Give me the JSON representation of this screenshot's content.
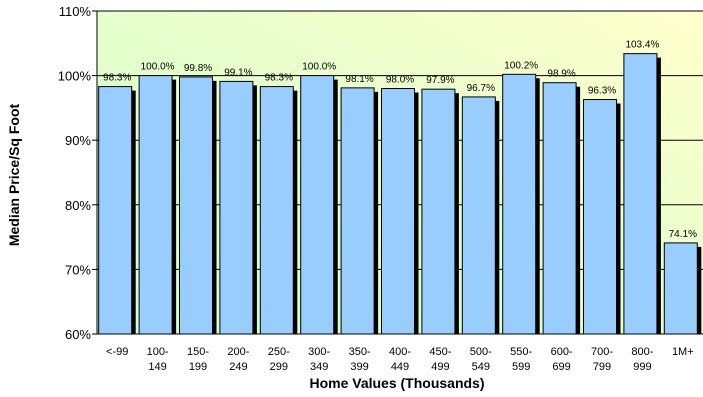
{
  "chart_data": {
    "type": "bar",
    "title": "",
    "xlabel": "Home Values (Thousands)",
    "ylabel": "Median Price/Sq Foot",
    "ylim": [
      60,
      110
    ],
    "yticks": [
      60,
      70,
      80,
      90,
      100,
      110
    ],
    "ytick_labels": [
      "60%",
      "70%",
      "80%",
      "90%",
      "100%",
      "110%"
    ],
    "grid": "horizontal",
    "legend": "none",
    "categories": [
      [
        "<-99"
      ],
      [
        "100-",
        "149"
      ],
      [
        "150-",
        "199"
      ],
      [
        "200-",
        "249"
      ],
      [
        "250-",
        "299"
      ],
      [
        "300-",
        "349"
      ],
      [
        "350-",
        "399"
      ],
      [
        "400-",
        "449"
      ],
      [
        "450-",
        "499"
      ],
      [
        "500-",
        "549"
      ],
      [
        "550-",
        "599"
      ],
      [
        "600-",
        "699"
      ],
      [
        "700-",
        "799"
      ],
      [
        "800-",
        "999"
      ],
      [
        "1M+"
      ]
    ],
    "values": [
      98.3,
      100.0,
      99.8,
      99.1,
      98.3,
      100.0,
      98.1,
      98.0,
      97.9,
      96.7,
      100.2,
      98.9,
      96.3,
      103.4,
      74.1
    ],
    "data_labels": [
      "98.3%",
      "100.0%",
      "99.8%",
      "99.1%",
      "98.3%",
      "100.0%",
      "98.1%",
      "98.0%",
      "97.9%",
      "96.7%",
      "100.2%",
      "98.9%",
      "96.3%",
      "103.4%",
      "74.1%"
    ],
    "colors": {
      "bar": "#99ccff",
      "bar_edge": "#000000",
      "bar_shadow": "#000000",
      "plot_bg_left": "#ccffcc",
      "plot_bg_right": "#ffffcc",
      "gridline": "#000000"
    }
  }
}
